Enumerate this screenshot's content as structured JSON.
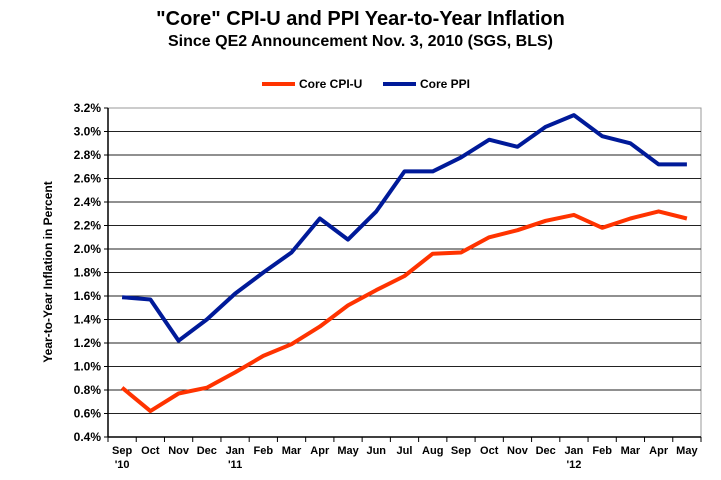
{
  "chart_data": {
    "type": "line",
    "title": "\"Core\" CPI-U and PPI Year-to-Year Inflation",
    "subtitle": "Since QE2 Announcement Nov. 3, 2010 (SGS, BLS)",
    "xlabel": "",
    "ylabel": "Year-to-Year Inflation in Percent",
    "ylim": [
      0.4,
      3.2
    ],
    "yticks": [
      "0.4%",
      "0.6%",
      "0.8%",
      "1.0%",
      "1.2%",
      "1.4%",
      "1.6%",
      "1.8%",
      "2.0%",
      "2.2%",
      "2.4%",
      "2.6%",
      "2.8%",
      "3.0%",
      "3.2%"
    ],
    "grid": true,
    "legend_position": "top",
    "categories": [
      "Sep",
      "Oct",
      "Nov",
      "Dec",
      "Jan",
      "Feb",
      "Mar",
      "Apr",
      "May",
      "Jun",
      "Jul",
      "Aug",
      "Sep",
      "Oct",
      "Nov",
      "Dec",
      "Jan",
      "Feb",
      "Mar",
      "Apr",
      "May"
    ],
    "year_labels": [
      {
        "index": 0,
        "label": "'10"
      },
      {
        "index": 4,
        "label": "'11"
      },
      {
        "index": 16,
        "label": "'12"
      }
    ],
    "series": [
      {
        "name": "Core CPI-U",
        "color": "#ff3300",
        "values": [
          0.82,
          0.62,
          0.77,
          0.82,
          0.95,
          1.09,
          1.19,
          1.34,
          1.52,
          1.65,
          1.77,
          1.96,
          1.97,
          2.1,
          2.16,
          2.24,
          2.29,
          2.18,
          2.26,
          2.32,
          2.26
        ]
      },
      {
        "name": "Core PPI",
        "color": "#001a99",
        "values": [
          1.59,
          1.57,
          1.22,
          1.4,
          1.62,
          1.8,
          1.97,
          2.26,
          2.08,
          2.32,
          2.66,
          2.66,
          2.78,
          2.93,
          2.87,
          3.04,
          3.14,
          2.96,
          2.9,
          2.72,
          2.72
        ]
      }
    ]
  }
}
